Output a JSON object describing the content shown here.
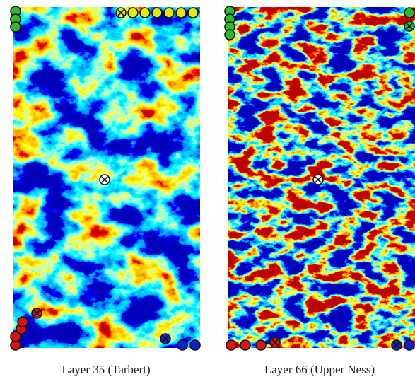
{
  "captions": [
    "Layer 35 (Tarbert)",
    "Layer 66 (Upper Ness)"
  ]
}
